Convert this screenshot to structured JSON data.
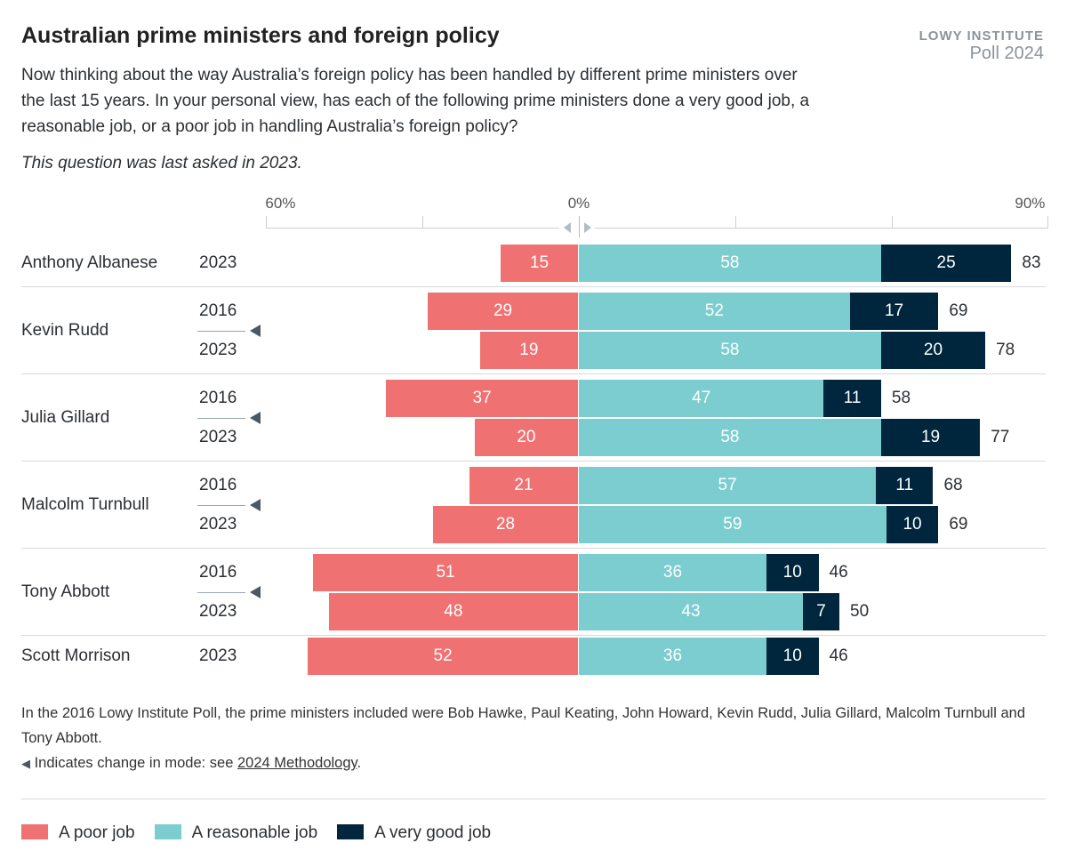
{
  "header": {
    "title": "Australian prime ministers and foreign policy",
    "brand_line1": "LOWY INSTITUTE",
    "brand_line2": "Poll 2024",
    "subtitle": "Now thinking about the way Australia’s foreign policy has been handled by different prime ministers over the last 15 years. In your personal view, has each of the following prime ministers done a very good job, a reasonable job, or a poor job in handling Australia’s foreign policy?",
    "note": "This question was last asked in 2023."
  },
  "footer": {
    "text": "In the 2016 Lowy Institute Poll, the prime ministers included were Bob Hawke, Paul Keating, John Howard, Kevin Rudd, Julia Gillard, Malcolm Turnbull and Tony Abbott.",
    "mode_text": "Indicates change in mode: see ",
    "mode_link": "2024 Methodology",
    "mode_end": "."
  },
  "chart_data": {
    "type": "bar",
    "orientation": "horizontal",
    "stacked": "diverging",
    "xlim": [
      -60,
      90
    ],
    "tick_labels": [
      {
        "value": -60,
        "label": "60%"
      },
      {
        "value": 0,
        "label": "0%"
      },
      {
        "value": 90,
        "label": "90%"
      }
    ],
    "ticks": [
      -60,
      -30,
      0,
      30,
      60,
      90
    ],
    "colors": {
      "poor": "#f07171",
      "reasonable": "#7ccdd0",
      "very_good": "#00263e"
    },
    "legend": [
      "A poor job",
      "A reasonable job",
      "A very good job"
    ],
    "legend_placement": "bottom-left",
    "groups": [
      {
        "name": "Anthony Albanese",
        "rows": [
          {
            "year": "2023",
            "poor": 15,
            "reasonable": 58,
            "very_good": 25,
            "total": 83
          }
        ]
      },
      {
        "name": "Kevin Rudd",
        "mode_change": true,
        "rows": [
          {
            "year": "2016",
            "poor": 29,
            "reasonable": 52,
            "very_good": 17,
            "total": 69
          },
          {
            "year": "2023",
            "poor": 19,
            "reasonable": 58,
            "very_good": 20,
            "total": 78
          }
        ]
      },
      {
        "name": "Julia Gillard",
        "mode_change": true,
        "rows": [
          {
            "year": "2016",
            "poor": 37,
            "reasonable": 47,
            "very_good": 11,
            "total": 58
          },
          {
            "year": "2023",
            "poor": 20,
            "reasonable": 58,
            "very_good": 19,
            "total": 77
          }
        ]
      },
      {
        "name": "Malcolm Turnbull",
        "mode_change": true,
        "rows": [
          {
            "year": "2016",
            "poor": 21,
            "reasonable": 57,
            "very_good": 11,
            "total": 68
          },
          {
            "year": "2023",
            "poor": 28,
            "reasonable": 59,
            "very_good": 10,
            "total": 69
          }
        ]
      },
      {
        "name": "Tony Abbott",
        "mode_change": true,
        "rows": [
          {
            "year": "2016",
            "poor": 51,
            "reasonable": 36,
            "very_good": 10,
            "total": 46
          },
          {
            "year": "2023",
            "poor": 48,
            "reasonable": 43,
            "very_good": 7,
            "total": 50
          }
        ]
      },
      {
        "name": "Scott Morrison",
        "rows": [
          {
            "year": "2023",
            "poor": 52,
            "reasonable": 36,
            "very_good": 10,
            "total": 46
          }
        ]
      }
    ]
  }
}
